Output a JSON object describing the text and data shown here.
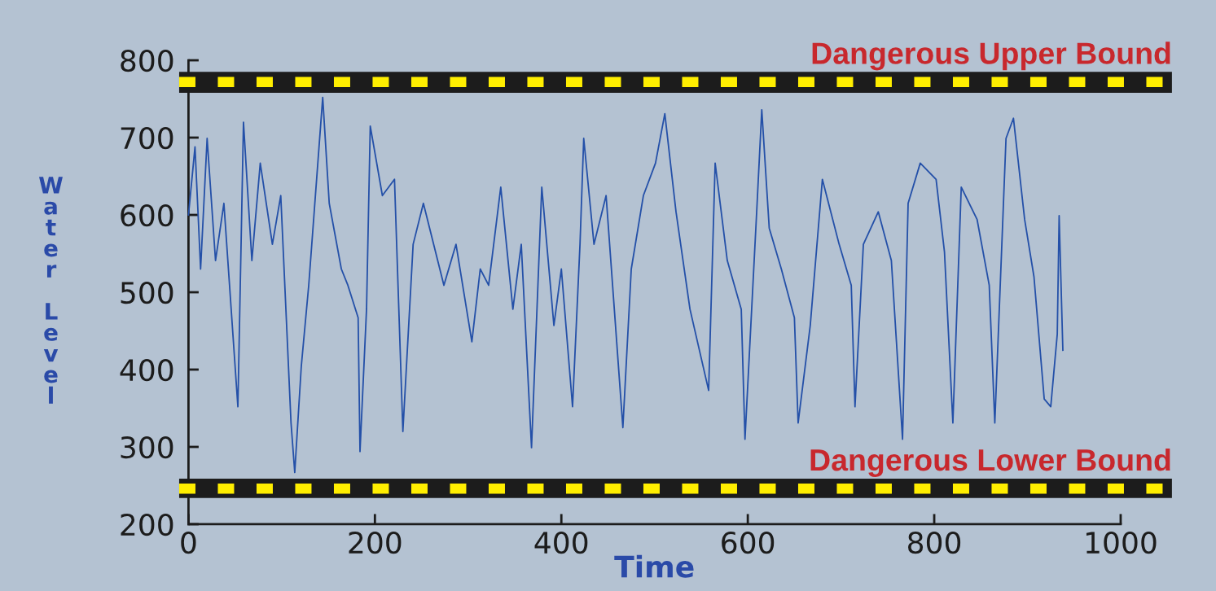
{
  "chart_data": {
    "type": "line",
    "xlabel": "Time",
    "ylabel": "Water Level",
    "xlim": [
      0,
      1000
    ],
    "xticks": [
      0,
      200,
      400,
      600,
      800,
      1000
    ],
    "ylim": [
      200,
      800
    ],
    "yticks": [
      200,
      300,
      400,
      500,
      600,
      700,
      800
    ],
    "grid": false,
    "marker": "none",
    "line_style": "solid",
    "series": [
      {
        "color": "#2450a8",
        "x": [
          0,
          7,
          13,
          20,
          29,
          38,
          53,
          59,
          68,
          77,
          90,
          99,
          110,
          114,
          121,
          129,
          144,
          151,
          164,
          171,
          182,
          184,
          191,
          195,
          208,
          221,
          230,
          241,
          252,
          274,
          287,
          304,
          313,
          322,
          335,
          348,
          357,
          368,
          379,
          392,
          400,
          412,
          420,
          424,
          435,
          448,
          466,
          475,
          488,
          501,
          511,
          523,
          538,
          558,
          565,
          578,
          593,
          597,
          610,
          615,
          623,
          636,
          650,
          654,
          667,
          680,
          698,
          711,
          715,
          724,
          740,
          754,
          766,
          772,
          785,
          802,
          811,
          820,
          829,
          846,
          859,
          865,
          877,
          885,
          897,
          907,
          918,
          925,
          932,
          934,
          938
        ],
        "values": [
          600,
          688,
          530,
          699,
          541,
          615,
          352,
          720,
          541,
          667,
          562,
          625,
          331,
          267,
          404,
          509,
          752,
          615,
          530,
          509,
          467,
          294,
          478,
          715,
          625,
          646,
          320,
          562,
          615,
          509,
          562,
          436,
          530,
          509,
          636,
          478,
          562,
          299,
          636,
          457,
          530,
          352,
          562,
          699,
          562,
          625,
          325,
          530,
          625,
          667,
          731,
          604,
          478,
          373,
          667,
          541,
          478,
          310,
          615,
          736,
          583,
          530,
          467,
          331,
          457,
          646,
          562,
          509,
          352,
          562,
          604,
          541,
          310,
          615,
          667,
          646,
          552,
          331,
          636,
          594,
          509,
          331,
          699,
          725,
          594,
          520,
          362,
          352,
          446,
          599,
          425
        ]
      }
    ],
    "ref_lines": [
      {
        "axis": "y",
        "value": 772,
        "label": "Dangerous Upper Bound",
        "color": "#ffee00",
        "line_style": "dashed"
      },
      {
        "axis": "y",
        "value": 246,
        "label": "Dangerous Lower Bound",
        "color": "#ffee00",
        "line_style": "dashed"
      }
    ],
    "bands": [
      {
        "axis": "y",
        "from": 758,
        "to": 785,
        "color": "#1c1c1c"
      },
      {
        "axis": "y",
        "from": 234,
        "to": 259,
        "color": "#1c1c1c"
      }
    ]
  }
}
